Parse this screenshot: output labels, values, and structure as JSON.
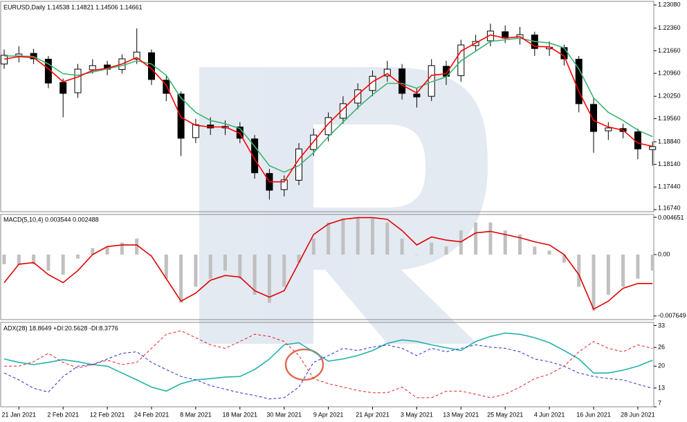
{
  "chart_data": [
    {
      "type": "candlestick",
      "title": "EURUSD,Daily  1.14538 1.14821 1.14506 1.14661",
      "up_color": "#ffffff",
      "down_color": "#000000",
      "ylim": [
        1.16675,
        1.2319
      ],
      "yticks": [
        {
          "value": 1.2308,
          "label": "1.23080"
        },
        {
          "value": 1.2236,
          "label": "1.22360"
        },
        {
          "value": 1.2166,
          "label": "1.21660"
        },
        {
          "value": 1.2096,
          "label": "1.20960"
        },
        {
          "value": 1.2025,
          "label": "1.20250"
        },
        {
          "value": 1.1956,
          "label": "1.19560"
        },
        {
          "value": 1.1884,
          "label": "1.18840"
        },
        {
          "value": 1.1814,
          "label": "1.18140"
        },
        {
          "value": 1.1744,
          "label": "1.17440"
        },
        {
          "value": 1.1674,
          "label": "1.16740"
        }
      ],
      "open": [
        1.2125,
        1.215,
        1.2158,
        1.214,
        1.2068,
        1.2036,
        1.2107,
        1.2122,
        1.2108,
        1.214,
        1.216,
        1.2075,
        1.2032,
        1.1897,
        1.1936,
        1.1927,
        1.193,
        1.1893,
        1.1786,
        1.1736,
        1.1765,
        1.186,
        1.1906,
        1.1957,
        1.2004,
        1.2043,
        1.2088,
        1.211,
        1.2032,
        1.2025,
        1.2118,
        1.2089,
        1.2182,
        1.2197,
        1.2225,
        1.2204,
        1.2215,
        1.2172,
        1.2176,
        1.214,
        1.2,
        1.1918,
        1.1925,
        1.1915,
        1.186
      ],
      "high": [
        1.217,
        1.218,
        1.2172,
        1.215,
        1.208,
        1.2125,
        1.214,
        1.2135,
        1.2155,
        1.2235,
        1.217,
        1.209,
        1.204,
        1.1955,
        1.196,
        1.195,
        1.1945,
        1.1905,
        1.18,
        1.178,
        1.188,
        1.1925,
        1.1975,
        1.2025,
        1.2065,
        1.2105,
        1.2135,
        1.2125,
        1.205,
        1.214,
        1.2135,
        1.22,
        1.2215,
        1.225,
        1.2245,
        1.224,
        1.2225,
        1.2195,
        1.2185,
        1.215,
        1.202,
        1.1945,
        1.194,
        1.1925,
        1.1885
      ],
      "low": [
        1.211,
        1.213,
        1.2125,
        1.205,
        1.196,
        1.202,
        1.2095,
        1.209,
        1.2095,
        1.2125,
        1.206,
        1.201,
        1.184,
        1.188,
        1.1905,
        1.1905,
        1.188,
        1.177,
        1.1705,
        1.1715,
        1.175,
        1.184,
        1.1885,
        1.194,
        1.1985,
        1.2025,
        1.207,
        1.2015,
        1.199,
        1.201,
        1.206,
        1.207,
        1.2165,
        1.218,
        1.219,
        1.2185,
        1.215,
        1.215,
        1.212,
        1.1975,
        1.185,
        1.189,
        1.1895,
        1.183,
        1.181
      ],
      "close": [
        1.2152,
        1.2156,
        1.2141,
        1.2066,
        1.2034,
        1.2109,
        1.212,
        1.2109,
        1.2141,
        1.2162,
        1.2077,
        1.2034,
        1.1895,
        1.1937,
        1.1927,
        1.1932,
        1.1895,
        1.1788,
        1.1734,
        1.1766,
        1.1862,
        1.1905,
        1.1959,
        1.2002,
        1.2045,
        1.2087,
        1.2109,
        1.2034,
        1.2023,
        1.212,
        1.2087,
        1.2184,
        1.2195,
        1.2227,
        1.2205,
        1.2216,
        1.2173,
        1.2177,
        1.2141,
        1.2002,
        1.1916,
        1.1927,
        1.1916,
        1.1862,
        1.1869
      ],
      "lines": [
        {
          "color": "#3cb371",
          "values": [
            1.215,
            1.215,
            1.2148,
            1.2125,
            1.2095,
            1.209,
            1.21,
            1.211,
            1.212,
            1.2135,
            1.2125,
            1.209,
            1.202,
            1.1975,
            1.195,
            1.194,
            1.1925,
            1.187,
            1.181,
            1.179,
            1.181,
            1.185,
            1.19,
            1.1945,
            1.199,
            1.203,
            1.2065,
            1.2065,
            1.205,
            1.207,
            1.2085,
            1.2135,
            1.2165,
            1.2195,
            1.22,
            1.2205,
            1.2195,
            1.219,
            1.2175,
            1.211,
            1.202,
            1.1975,
            1.195,
            1.192,
            1.19
          ]
        },
        {
          "color": "#ff0000",
          "values": [
            1.214,
            1.2148,
            1.2145,
            1.211,
            1.207,
            1.2085,
            1.2105,
            1.2112,
            1.2125,
            1.2145,
            1.211,
            1.206,
            1.196,
            1.1935,
            1.193,
            1.193,
            1.191,
            1.183,
            1.176,
            1.176,
            1.183,
            1.1885,
            1.194,
            1.1985,
            1.203,
            1.207,
            1.2095,
            1.206,
            1.2035,
            1.209,
            1.2095,
            1.2165,
            1.219,
            1.2215,
            1.2205,
            1.221,
            1.218,
            1.2178,
            1.215,
            1.204,
            1.195,
            1.193,
            1.192,
            1.188,
            1.187
          ]
        }
      ]
    },
    {
      "type": "bar",
      "title": "MACD(5,10,4) 0.003544 0.002488",
      "color": "#c0c0c0",
      "ylim": [
        -0.0081,
        0.005
      ],
      "yticks": [
        0.004651,
        {
          "value": 0,
          "label": "0.00"
        },
        -0.007649
      ],
      "values": [
        -0.0012,
        -0.0013,
        -0.0012,
        -0.002,
        -0.0025,
        -0.0005,
        0.0008,
        0.001,
        0.0015,
        0.002,
        0.0,
        -0.003,
        -0.006,
        -0.004,
        -0.003,
        -0.002,
        -0.003,
        -0.005,
        -0.006,
        -0.004,
        -0.001,
        0.002,
        0.004,
        0.0045,
        0.0046,
        0.0045,
        0.004,
        0.002,
        0.0,
        0.0015,
        0.001,
        0.003,
        0.004,
        0.004,
        0.003,
        0.0025,
        0.001,
        0.0005,
        -0.001,
        -0.004,
        -0.007,
        -0.005,
        -0.004,
        -0.003,
        -0.002
      ],
      "lines": [
        {
          "color": "#e00000",
          "values": [
            -0.0035,
            -0.0012,
            -0.001,
            -0.0025,
            -0.0035,
            -0.002,
            0.0,
            0.001,
            0.0012,
            0.0012,
            -0.0002,
            -0.003,
            -0.0058,
            -0.0048,
            -0.0032,
            -0.0026,
            -0.0028,
            -0.0045,
            -0.0053,
            -0.0045,
            -0.001,
            0.0025,
            0.0038,
            0.0044,
            0.0046,
            0.0046,
            0.0044,
            0.003,
            0.0012,
            0.0022,
            0.0018,
            0.0016,
            0.0027,
            0.0029,
            0.0025,
            0.0021,
            0.0016,
            0.0012,
            0.0,
            -0.0025,
            -0.0068,
            -0.0058,
            -0.0042,
            -0.0036,
            -0.0036
          ]
        }
      ]
    },
    {
      "type": "line",
      "title": "ADX(28) 18.8649 +DI:20.5628 -DI:8.3776",
      "ylim": [
        7,
        34
      ],
      "yticks": [
        33,
        26,
        20,
        13,
        7
      ],
      "categories": [
        null,
        "21 Jan 2021",
        null,
        null,
        "2 Feb 2021",
        null,
        null,
        "12 Feb 2021",
        null,
        null,
        "24 Feb 2021",
        null,
        null,
        "8 Mar 2021",
        null,
        null,
        "18 Mar 2021",
        null,
        null,
        "30 Mar 2021",
        null,
        null,
        "9 Apr 2021",
        null,
        null,
        "21 Apr 2021",
        null,
        null,
        "3 May 2021",
        null,
        null,
        "13 May 2021",
        null,
        null,
        "25 May 2021",
        null,
        null,
        "4 Jun 2021",
        null,
        null,
        "16 Jun 2021",
        null,
        null,
        "28 Jun 2021",
        null
      ],
      "series": [
        {
          "color": "#20b2aa",
          "dash": false,
          "values": [
            22.3,
            21.2,
            20.5,
            21.2,
            22.1,
            21.4,
            20.5,
            20.0,
            17.8,
            15.6,
            13.3,
            12.0,
            14.4,
            15.6,
            16.0,
            16.5,
            16.7,
            18.9,
            22.3,
            26.8,
            27.5,
            24.6,
            21.6,
            22.3,
            23.4,
            25.0,
            27.3,
            28.4,
            27.9,
            26.8,
            25.9,
            25.0,
            27.9,
            29.5,
            30.6,
            30.2,
            29.1,
            27.5,
            25.0,
            22.3,
            17.8,
            17.8,
            18.7,
            20.0,
            21.9
          ]
        },
        {
          "color": "#2a2ad0",
          "dash": true,
          "values": [
            17.8,
            15.6,
            12.9,
            11.7,
            16.7,
            20.0,
            20.5,
            22.3,
            24.1,
            24.6,
            21.2,
            18.9,
            16.7,
            15.6,
            13.8,
            12.6,
            11.5,
            10.6,
            9.5,
            9.9,
            13.3,
            21.2,
            23.4,
            25.7,
            25.0,
            26.1,
            26.8,
            25.7,
            23.4,
            25.7,
            24.6,
            25.7,
            26.8,
            26.1,
            25.7,
            24.6,
            22.3,
            21.4,
            20.0,
            17.8,
            16.7,
            16.0,
            15.6,
            14.2,
            12.9
          ]
        },
        {
          "color": "#e02020",
          "dash": true,
          "values": [
            20.0,
            20.0,
            21.4,
            24.1,
            21.2,
            19.4,
            20.5,
            21.9,
            20.5,
            21.2,
            25.7,
            30.2,
            31.3,
            29.1,
            26.8,
            25.7,
            27.9,
            30.2,
            29.5,
            27.9,
            23.4,
            16.0,
            14.4,
            13.3,
            12.2,
            11.5,
            11.5,
            13.3,
            9.9,
            9.9,
            12.0,
            12.0,
            11.0,
            9.9,
            11.0,
            13.3,
            16.0,
            17.4,
            20.0,
            24.6,
            27.9,
            25.7,
            24.6,
            26.8,
            25.7
          ]
        }
      ]
    }
  ]
}
